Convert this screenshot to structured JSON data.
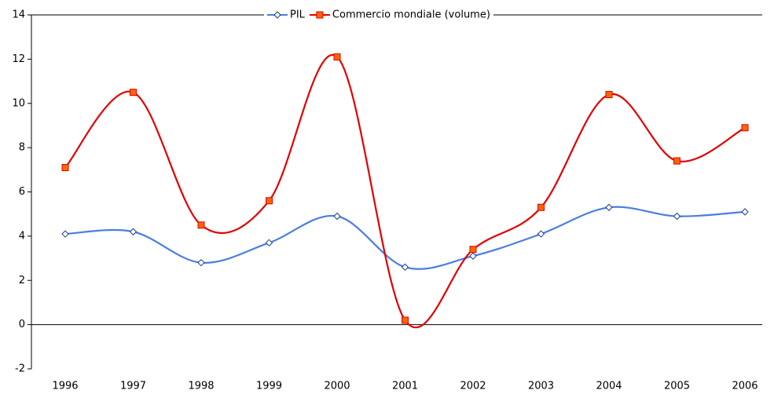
{
  "chart_data": {
    "type": "line",
    "categories": [
      "1996",
      "1997",
      "1998",
      "1999",
      "2000",
      "2001",
      "2002",
      "2003",
      "2004",
      "2005",
      "2006"
    ],
    "series": [
      {
        "name": "PIL",
        "color": "#4a7ee0",
        "marker": "diamond",
        "values": [
          4.1,
          4.2,
          2.8,
          3.7,
          4.9,
          2.6,
          3.1,
          4.1,
          5.3,
          4.9,
          5.1
        ]
      },
      {
        "name": "Commercio mondiale (volume)",
        "color": "#e00000",
        "marker": "square",
        "values": [
          7.1,
          10.5,
          4.5,
          5.6,
          12.1,
          0.2,
          3.4,
          5.3,
          10.4,
          7.4,
          8.9
        ]
      }
    ],
    "ylim": [
      -2,
      14
    ],
    "yticks": [
      -2,
      0,
      2,
      4,
      6,
      8,
      10,
      12,
      14
    ],
    "smooth": true,
    "legend": "top"
  }
}
